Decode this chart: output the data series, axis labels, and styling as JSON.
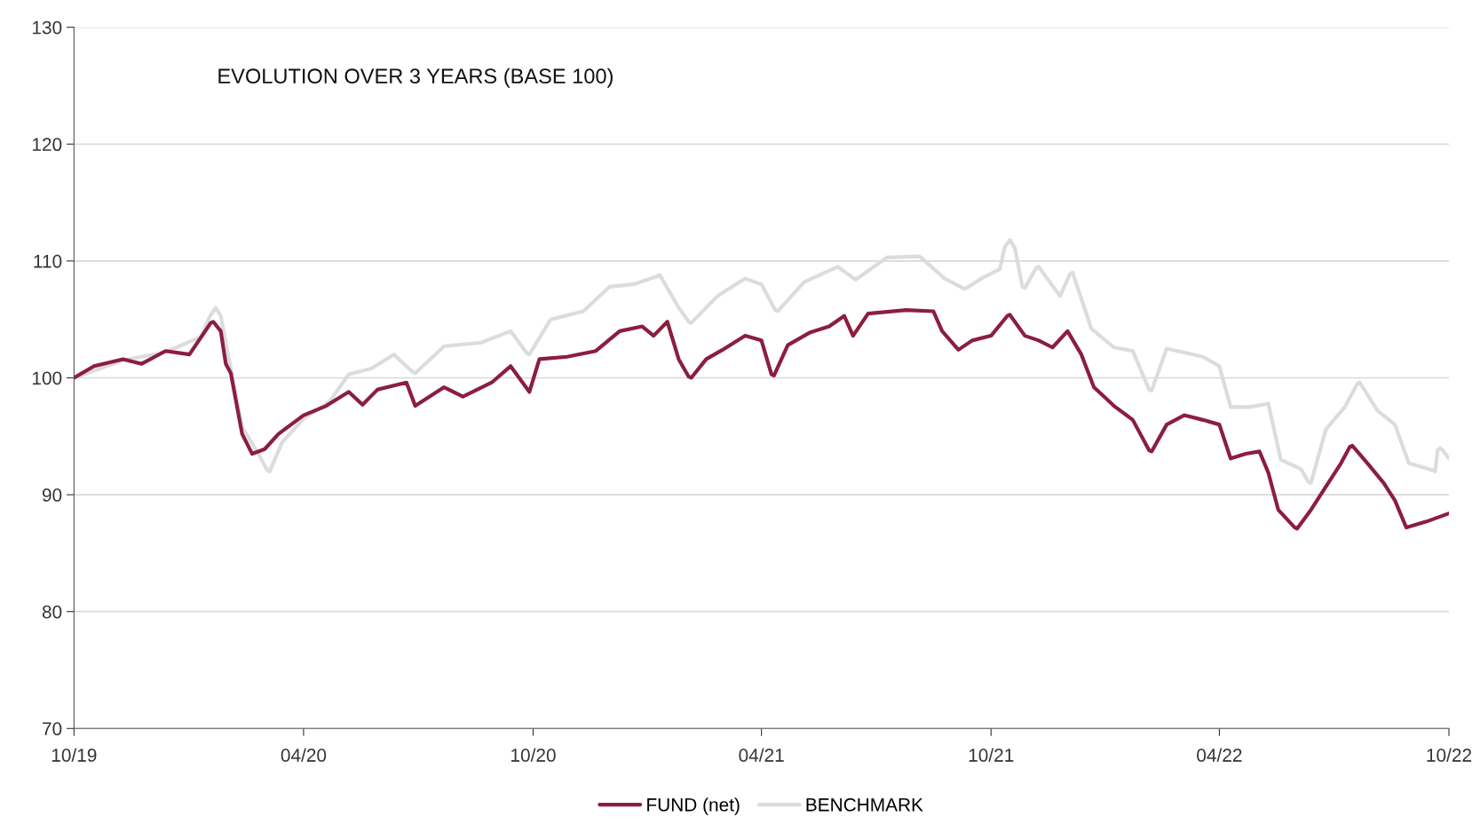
{
  "chart_data": {
    "type": "line",
    "title": "EVOLUTION OVER 3 YEARS (BASE 100)",
    "x": [
      "2019-10-01",
      "2019-10-17",
      "2019-11-09",
      "2019-11-24",
      "2019-12-13",
      "2020-01-01",
      "2020-01-18",
      "2020-01-20",
      "2020-01-26",
      "2020-01-30",
      "2020-02-03",
      "2020-02-12",
      "2020-02-20",
      "2020-03-01",
      "2020-03-12",
      "2020-04-01",
      "2020-04-19",
      "2020-05-07",
      "2020-05-18",
      "2020-05-30",
      "2020-06-22",
      "2020-06-29",
      "2020-07-22",
      "2020-08-06",
      "2020-08-29",
      "2020-09-13",
      "2020-09-28",
      "2020-10-06",
      "2020-10-28",
      "2020-11-20",
      "2020-12-09",
      "2020-12-27",
      "2021-01-05",
      "2021-01-16",
      "2021-01-25",
      "2021-02-02",
      "2021-02-04",
      "2021-02-16",
      "2021-03-01",
      "2021-03-19",
      "2021-04-01",
      "2021-04-09",
      "2021-04-11",
      "2021-04-22",
      "2021-05-10",
      "2021-05-25",
      "2021-06-06",
      "2021-06-13",
      "2021-06-25",
      "2021-07-25",
      "2021-08-16",
      "2021-08-23",
      "2021-09-05",
      "2021-09-16",
      "2021-10-01",
      "2021-10-14",
      "2021-10-16",
      "2021-10-28",
      "2021-11-08",
      "2021-11-19",
      "2021-12-01",
      "2021-12-12",
      "2021-12-22",
      "2022-01-07",
      "2022-01-22",
      "2022-02-04",
      "2022-02-06",
      "2022-02-18",
      "2022-03-04",
      "2022-03-19",
      "2022-04-01",
      "2022-04-10",
      "2022-04-22",
      "2022-05-03",
      "2022-05-10",
      "2022-05-18",
      "2022-05-31",
      "2022-06-02",
      "2022-06-13",
      "2022-06-25",
      "2022-07-07",
      "2022-07-14",
      "2022-07-16",
      "2022-07-28",
      "2022-08-10",
      "2022-08-19",
      "2022-08-28",
      "2022-09-13",
      "2022-10-01"
    ],
    "series": [
      {
        "name": "FUND (net)",
        "color": "#8b1e3f",
        "values": [
          100,
          101,
          101.6,
          101.2,
          102.3,
          102,
          104.7,
          104.8,
          104,
          101.2,
          100.4,
          95.2,
          93.5,
          93.9,
          95.2,
          96.8,
          97.6,
          98.8,
          97.7,
          99,
          99.6,
          97.6,
          99.2,
          98.4,
          99.6,
          101,
          98.8,
          101.6,
          101.8,
          102.3,
          104,
          104.4,
          103.6,
          104.8,
          101.6,
          100.1,
          100,
          101.6,
          102.4,
          103.6,
          103.2,
          100.3,
          100.2,
          102.8,
          103.9,
          104.4,
          105.3,
          103.6,
          105.5,
          105.8,
          105.7,
          104,
          102.4,
          103.2,
          103.6,
          105.3,
          105.4,
          103.6,
          103.2,
          102.6,
          104,
          102,
          99.2,
          97.6,
          96.4,
          93.8,
          93.7,
          96,
          96.8,
          96.4,
          96,
          93.1,
          93.5,
          93.7,
          91.9,
          88.7,
          87.2,
          87.1,
          88.7,
          90.7,
          92.7,
          94.1,
          94.2,
          92.7,
          91,
          89.5,
          87.2,
          87.7,
          88.4
        ]
      },
      {
        "name": "BENCHMARK",
        "color": "#dcdcdc",
        "x": [
          "2019-10-01",
          "2019-11-09",
          "2019-12-13",
          "2020-01-10",
          "2020-01-17",
          "2020-01-22",
          "2020-01-26",
          "2020-01-30",
          "2020-02-12",
          "2020-02-25",
          "2020-03-03",
          "2020-03-05",
          "2020-03-15",
          "2020-04-01",
          "2020-04-22",
          "2020-05-07",
          "2020-05-25",
          "2020-06-12",
          "2020-06-27",
          "2020-06-29",
          "2020-07-22",
          "2020-08-20",
          "2020-09-13",
          "2020-09-26",
          "2020-09-28",
          "2020-10-15",
          "2020-11-10",
          "2020-12-01",
          "2020-12-20",
          "2021-01-08",
          "2021-01-10",
          "2021-01-25",
          "2021-02-02",
          "2021-02-04",
          "2021-02-25",
          "2021-03-19",
          "2021-04-01",
          "2021-04-12",
          "2021-04-14",
          "2021-05-05",
          "2021-06-01",
          "2021-06-15",
          "2021-07-10",
          "2021-08-05",
          "2021-08-25",
          "2021-09-10",
          "2021-09-25",
          "2021-10-08",
          "2021-10-12",
          "2021-10-16",
          "2021-10-20",
          "2021-10-26",
          "2021-10-28",
          "2021-11-06",
          "2021-11-08",
          "2021-11-25",
          "2021-12-03",
          "2021-12-05",
          "2021-12-20",
          "2022-01-07",
          "2022-01-22",
          "2022-02-04",
          "2022-02-06",
          "2022-02-18",
          "2022-03-19",
          "2022-04-01",
          "2022-04-10",
          "2022-04-25",
          "2022-05-10",
          "2022-05-20",
          "2022-06-05",
          "2022-06-11",
          "2022-06-13",
          "2022-06-25",
          "2022-07-10",
          "2022-07-20",
          "2022-07-22",
          "2022-08-05",
          "2022-08-19",
          "2022-08-30",
          "2022-09-18",
          "2022-09-20",
          "2022-09-22",
          "2022-09-24",
          "2022-09-26",
          "2022-10-01"
        ],
        "values": [
          100,
          101.5,
          102.2,
          103.5,
          105.2,
          106,
          105.3,
          103,
          95.8,
          93.5,
          92.1,
          92,
          94.5,
          96.5,
          98,
          100.3,
          100.8,
          102,
          100.5,
          100.4,
          102.7,
          103,
          104,
          102.1,
          102,
          105,
          105.7,
          107.8,
          108,
          108.7,
          108.8,
          106,
          104.8,
          104.7,
          107,
          108.5,
          108,
          105.8,
          105.7,
          108.2,
          109.5,
          108.4,
          110.3,
          110.4,
          108.5,
          107.6,
          108.6,
          109.3,
          111.2,
          111.8,
          111.1,
          107.8,
          107.7,
          109.4,
          109.5,
          107,
          108.9,
          109,
          104.2,
          102.6,
          102.3,
          99,
          98.9,
          102.5,
          101.8,
          101,
          97.5,
          97.5,
          97.8,
          93,
          92.2,
          91.1,
          91,
          95.6,
          97.5,
          99.5,
          99.6,
          97.2,
          96,
          92.7,
          92.1,
          92,
          93.8,
          94,
          93.8,
          93.1
        ]
      }
    ],
    "xlim": [
      "2019-10-01",
      "2022-10-01"
    ],
    "xticks": [
      {
        "value": "2019-10-01",
        "label": "10/19"
      },
      {
        "value": "2020-04-01",
        "label": "04/20"
      },
      {
        "value": "2020-10-01",
        "label": "10/20"
      },
      {
        "value": "2021-04-01",
        "label": "04/21"
      },
      {
        "value": "2021-10-01",
        "label": "10/21"
      },
      {
        "value": "2022-04-01",
        "label": "04/22"
      },
      {
        "value": "2022-10-01",
        "label": "10/22"
      }
    ],
    "ylim": [
      70,
      130
    ],
    "yticks": [
      70,
      80,
      90,
      100,
      110,
      120,
      130
    ],
    "grid": "y",
    "legend": "bottom",
    "marker": "none",
    "line_style": "solid"
  }
}
